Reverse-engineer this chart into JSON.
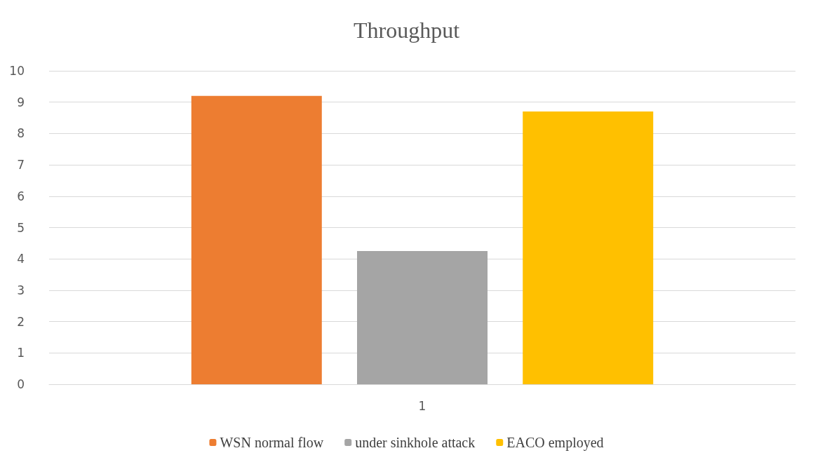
{
  "chart_data": {
    "type": "bar",
    "title": "Throughput",
    "categories": [
      "1"
    ],
    "series": [
      {
        "name": "WSN normal flow",
        "color": "#ed7d31",
        "values": [
          9.2
        ]
      },
      {
        "name": "under sinkhole attack",
        "color": "#a5a5a5",
        "values": [
          4.25
        ]
      },
      {
        "name": "EACO employed",
        "color": "#ffc000",
        "values": [
          8.7
        ]
      }
    ],
    "ylim": [
      0,
      10
    ],
    "yticks": [
      0,
      1,
      2,
      3,
      4,
      5,
      6,
      7,
      8,
      9,
      10
    ],
    "grid": "y",
    "legend": "bottom"
  }
}
